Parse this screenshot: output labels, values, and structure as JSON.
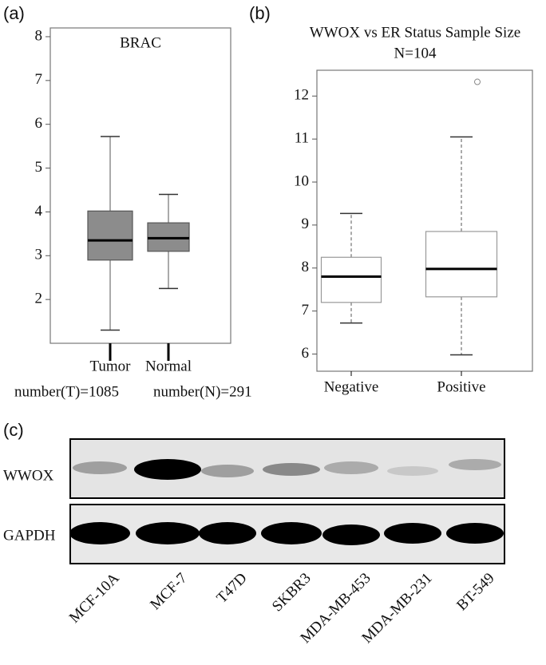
{
  "panels": [
    "(a)",
    "(b)",
    "(c)"
  ],
  "chart_data": [
    {
      "type": "box",
      "title": "BRAC",
      "categories": [
        "Tumor",
        "Normal"
      ],
      "annotations": [
        "number(T)=1085",
        "number(N)=291"
      ],
      "boxes": [
        {
          "min": 1.3,
          "q1": 2.9,
          "median": 3.35,
          "q3": 4.02,
          "max": 5.72
        },
        {
          "min": 2.25,
          "q1": 3.1,
          "median": 3.4,
          "q3": 3.75,
          "max": 4.4
        }
      ],
      "outliers": [
        [],
        []
      ],
      "color": "#8c8c8c",
      "ylim": [
        1,
        8.2
      ],
      "yticks": [
        2,
        3,
        4,
        5,
        6,
        7,
        8
      ]
    },
    {
      "type": "box",
      "title": "WWOX vs ER Status Sample Size",
      "subtitle": "N=104",
      "categories": [
        "Negative",
        "Positive"
      ],
      "boxes": [
        {
          "min": 6.72,
          "q1": 7.2,
          "median": 7.8,
          "q3": 8.25,
          "max": 9.27
        },
        {
          "min": 5.98,
          "q1": 7.33,
          "median": 7.98,
          "q3": 8.85,
          "max": 11.05
        }
      ],
      "outliers": [
        [],
        [
          12.33
        ]
      ],
      "color": "#ffffff",
      "ylim": [
        5.6,
        12.6
      ],
      "yticks": [
        6,
        7,
        8,
        9,
        10,
        11,
        12
      ]
    }
  ],
  "blot": {
    "rows": [
      "WWOX",
      "GAPDH"
    ],
    "lanes": [
      "MCF-10A",
      "MCF-7",
      "T47D",
      "SKBR3",
      "MDA-MB-453",
      "MDA-MB-231",
      "BT-549"
    ]
  }
}
